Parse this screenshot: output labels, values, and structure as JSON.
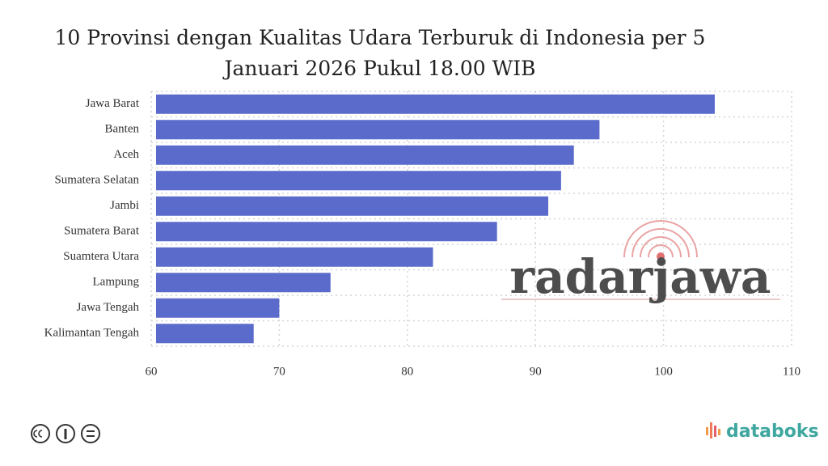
{
  "chart_data": {
    "type": "barh",
    "title": "10 Provinsi dengan Kualitas Udara Terburuk di Indonesia per 5 Januari 2026 Pukul 18.00 WIB",
    "categories": [
      "Jawa Barat",
      "Banten",
      "Aceh",
      "Sumatera Selatan",
      "Jambi",
      "Sumatera Barat",
      "Suamtera Utara",
      "Lampung",
      "Jawa Tengah",
      "Kalimantan Tengah"
    ],
    "values": [
      104,
      95,
      93,
      92,
      91,
      87,
      82,
      74,
      70,
      68
    ],
    "color": "#5b6bcc",
    "xlim": [
      60,
      110
    ],
    "xticks": [
      60,
      70,
      80,
      90,
      100,
      110
    ],
    "grid": true
  },
  "watermark": "radarjawa",
  "source_logo": "databoks"
}
